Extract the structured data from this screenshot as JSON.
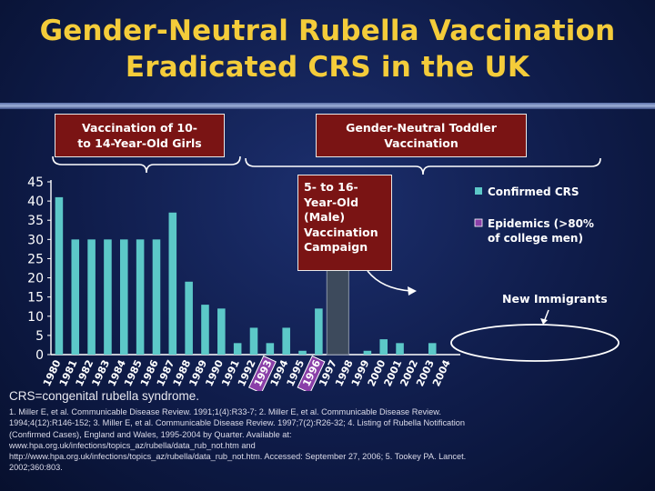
{
  "title_lines": [
    "Gender-Neutral Rubella Vaccination",
    "Eradicated CRS in the UK"
  ],
  "phase_boxes": {
    "girls": [
      "Vaccination of 10-",
      "to 14-Year-Old Girls"
    ],
    "toddler": [
      "Gender-Neutral Toddler",
      "Vaccination"
    ],
    "male": [
      "5- to 16-",
      "Year-Old",
      "(Male)",
      "Vaccination",
      "Campaign"
    ]
  },
  "annotation_new_immigrants": "New Immigrants",
  "colors": {
    "bar": "#5cc8c8",
    "bar_1997": "#3d4a5c",
    "epidemic": "#8a3fa8",
    "title": "#f4cc3a",
    "box": "#7a1414"
  },
  "chart_data": {
    "type": "bar",
    "categories": [
      "1980",
      "1981",
      "1982",
      "1983",
      "1984",
      "1985",
      "1986",
      "1987",
      "1988",
      "1989",
      "1990",
      "1991",
      "1992",
      "1993",
      "1994",
      "1995",
      "1996",
      "1997",
      "1998",
      "1999",
      "2000",
      "2001",
      "2002",
      "2003",
      "2004"
    ],
    "series": [
      {
        "name": "Confirmed CRS",
        "values": [
          41,
          30,
          30,
          30,
          30,
          30,
          30,
          37,
          19,
          13,
          12,
          3,
          7,
          3,
          7,
          1,
          12,
          43,
          null,
          1,
          4,
          3,
          0,
          3,
          null
        ]
      }
    ],
    "epidemic_years": [
      "1993",
      "1996"
    ],
    "legend": [
      "Confirmed CRS",
      "Epidemics (>80% of college men)"
    ],
    "ylim": [
      0,
      45
    ],
    "yticks": [
      0,
      5,
      10,
      15,
      20,
      25,
      30,
      35,
      40,
      45
    ],
    "legend_placement": "top-right"
  },
  "footnotes": {
    "crs_definition": "CRS=congenital rubella syndrome.",
    "references": [
      "1. Miller E, et al. Communicable Disease Review. 1991;1(4):R33-7; 2. Miller E, et al. Communicable Disease Review.",
      "1994;4(12):R146-152; 3. Miller E, et al. Communicable Disease Review. 1997;7(2):R26-32; 4. Listing of Rubella Notification",
      "(Confirmed Cases), England and Wales, 1995-2004 by Quarter. Available at:",
      "www.hpa.org.uk/infections/topics_az/rubella/data_rub_not.htm and",
      "http://www.hpa.org.uk/infections/topics_az/rubella/data_rub_not.htm. Accessed: September 27, 2006; 5. Tookey PA. Lancet.",
      "2002;360:803."
    ]
  }
}
